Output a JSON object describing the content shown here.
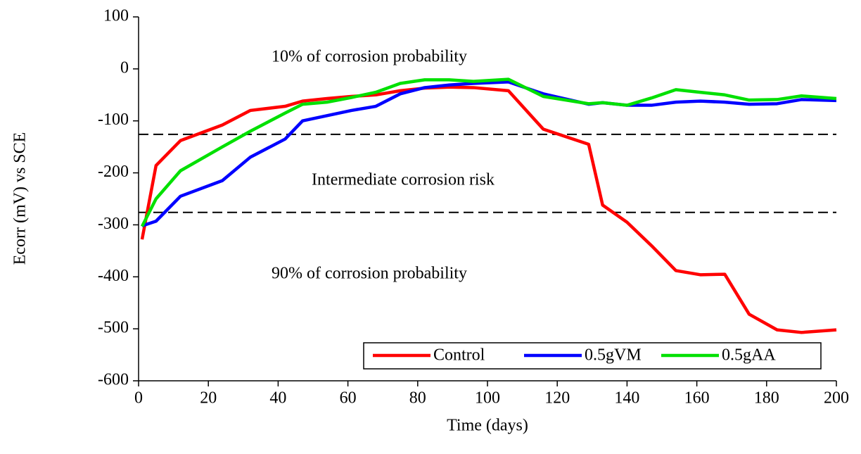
{
  "chart_data": {
    "type": "line",
    "xlabel": "Time (days)",
    "ylabel": "Ecorr (mV) vs SCE",
    "annotations": [
      "10% of corrosion probability",
      "Intermediate corrosion risk",
      "90% of corrosion probability"
    ],
    "hlines": [
      -126,
      -276
    ],
    "x": [
      1,
      5,
      12,
      24,
      32,
      42,
      47,
      54,
      61,
      68,
      75,
      82,
      89,
      96,
      106,
      116,
      129,
      133,
      140,
      147,
      154,
      161,
      168,
      175,
      183,
      190,
      200
    ],
    "series": [
      {
        "name": "Control",
        "color": "#ff0000",
        "values": [
          -328,
          -186,
          -138,
          -108,
          -80,
          -72,
          -62,
          -57,
          -53,
          -50,
          -42,
          -37,
          -35,
          -36,
          -42,
          -116,
          -145,
          -262,
          -295,
          -340,
          -388,
          -396,
          -395,
          -472,
          -502,
          -507,
          -502
        ]
      },
      {
        "name": "0.5gVM",
        "color": "#0000ff",
        "values": [
          -302,
          -293,
          -245,
          -215,
          -170,
          -135,
          -100,
          -90,
          -80,
          -72,
          -48,
          -36,
          -31,
          -28,
          -25,
          -48,
          -68,
          -65,
          -70,
          -70,
          -64,
          -62,
          -64,
          -68,
          -67,
          -59,
          -61
        ]
      },
      {
        "name": "0.5gAA",
        "color": "#00e000",
        "values": [
          -303,
          -250,
          -196,
          -150,
          -120,
          -85,
          -68,
          -64,
          -55,
          -45,
          -28,
          -21,
          -21,
          -24,
          -20,
          -53,
          -67,
          -65,
          -70,
          -56,
          -40,
          -45,
          -50,
          -60,
          -59,
          -52,
          -57
        ]
      }
    ],
    "xlim": [
      0,
      200
    ],
    "xticks": [
      0,
      20,
      40,
      60,
      80,
      100,
      120,
      140,
      160,
      180,
      200
    ],
    "ylim": [
      -600,
      100
    ],
    "yticks": [
      100,
      0,
      -100,
      -200,
      -300,
      -400,
      -500,
      -600
    ],
    "legend": "lower right"
  }
}
